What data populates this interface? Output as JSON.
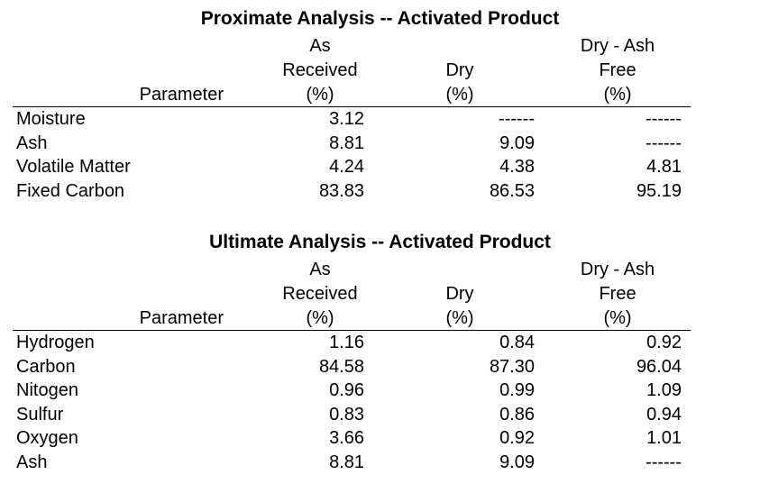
{
  "tables": [
    {
      "title": "Proximate Analysis -- Activated Product",
      "headers": {
        "parameter": "Parameter",
        "col1": [
          "As",
          "Received",
          "(%)"
        ],
        "col2": [
          "Dry",
          "(%)"
        ],
        "col3": [
          "Dry - Ash",
          "Free",
          "(%)"
        ]
      },
      "rows": [
        {
          "label": "Moisture",
          "values": [
            "3.12",
            "------",
            "------"
          ]
        },
        {
          "label": "Ash",
          "values": [
            "8.81",
            "9.09",
            "------"
          ]
        },
        {
          "label": "Volatile Matter",
          "values": [
            "4.24",
            "4.38",
            "4.81"
          ]
        },
        {
          "label": "Fixed Carbon",
          "values": [
            "83.83",
            "86.53",
            "95.19"
          ]
        }
      ]
    },
    {
      "title": "Ultimate Analysis -- Activated Product",
      "headers": {
        "parameter": "Parameter",
        "col1": [
          "As",
          "Received",
          "(%)"
        ],
        "col2": [
          "Dry",
          "(%)"
        ],
        "col3": [
          "Dry - Ash",
          "Free",
          "(%)"
        ]
      },
      "rows": [
        {
          "label": "Hydrogen",
          "values": [
            "1.16",
            "0.84",
            "0.92"
          ]
        },
        {
          "label": "Carbon",
          "values": [
            "84.58",
            "87.30",
            "96.04"
          ]
        },
        {
          "label": "Nitogen",
          "values": [
            "0.96",
            "0.99",
            "1.09"
          ]
        },
        {
          "label": "Sulfur",
          "values": [
            "0.83",
            "0.86",
            "0.94"
          ]
        },
        {
          "label": "Oxygen",
          "values": [
            "3.66",
            "0.92",
            "1.01"
          ]
        },
        {
          "label": "Ash",
          "values": [
            "8.81",
            "9.09",
            "------"
          ]
        }
      ]
    }
  ]
}
